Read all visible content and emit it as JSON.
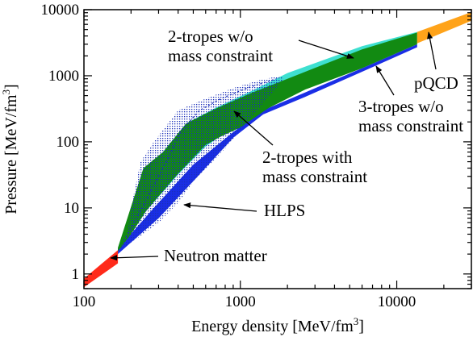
{
  "chart_data": {
    "type": "area",
    "xlabel_main": "Energy density [MeV/fm",
    "xlabel_sup": "3",
    "xlabel_end": "]",
    "ylabel_main": "Pressure  [MeV/fm",
    "ylabel_sup": "3",
    "ylabel_end": "]",
    "xscale": "log",
    "yscale": "log",
    "xlim": [
      100,
      30000
    ],
    "ylim": [
      0.6,
      10000
    ],
    "grid": false,
    "x_ticks": [
      {
        "value": 100,
        "label": "100"
      },
      {
        "value": 1000,
        "label": "1000"
      },
      {
        "value": 10000,
        "label": "10000"
      }
    ],
    "y_ticks": [
      {
        "value": 1,
        "label": "1"
      },
      {
        "value": 10,
        "label": "10"
      },
      {
        "value": 100,
        "label": "100"
      },
      {
        "value": 1000,
        "label": "1000"
      },
      {
        "value": 10000,
        "label": "10000"
      }
    ],
    "colors": {
      "neutron": "#ff2a1a",
      "pqcd": "#ffa31a",
      "two_tropes_without": "#3ee0d0",
      "three_tropes": "#1a2ee6",
      "two_tropes_with": "#128a12",
      "hlps": "#1a2eb8"
    },
    "bands": [
      {
        "id": "neutron-matter",
        "color_key": "neutron",
        "points": [
          [
            100,
            0.63
          ],
          [
            100,
            0.85
          ],
          [
            165,
            2.3
          ],
          [
            165,
            1.45
          ]
        ]
      },
      {
        "id": "pqcd",
        "color_key": "pqcd",
        "points": [
          [
            13500,
            3100
          ],
          [
            13500,
            4600
          ],
          [
            30000,
            9200
          ],
          [
            30000,
            6800
          ]
        ]
      },
      {
        "id": "two-tropes-without",
        "color_key": "two_tropes_without",
        "points": [
          [
            165,
            2.2
          ],
          [
            165,
            2.5
          ],
          [
            240,
            38
          ],
          [
            320,
            70
          ],
          [
            450,
            190
          ],
          [
            700,
            330
          ],
          [
            1200,
            600
          ],
          [
            2000,
            1100
          ],
          [
            6000,
            2800
          ],
          [
            13500,
            4600
          ],
          [
            13500,
            3200
          ],
          [
            8000,
            2200
          ],
          [
            3000,
            1100
          ],
          [
            1500,
            350
          ],
          [
            1000,
            200
          ],
          [
            600,
            85
          ],
          [
            400,
            32
          ],
          [
            250,
            9
          ],
          [
            200,
            4
          ]
        ]
      },
      {
        "id": "three-tropes",
        "color_key": "three_tropes",
        "points": [
          [
            165,
            2.0
          ],
          [
            165,
            2.4
          ],
          [
            280,
            10
          ],
          [
            500,
            45
          ],
          [
            900,
            140
          ],
          [
            1400,
            300
          ],
          [
            2600,
            560
          ],
          [
            6000,
            1300
          ],
          [
            13500,
            3000
          ],
          [
            13500,
            2700
          ],
          [
            6000,
            1150
          ],
          [
            2600,
            480
          ],
          [
            1400,
            260
          ],
          [
            900,
            115
          ],
          [
            520,
            28
          ],
          [
            300,
            7
          ],
          [
            200,
            3
          ]
        ]
      },
      {
        "id": "two-tropes-with",
        "color_key": "two_tropes_with",
        "points": [
          [
            165,
            2.2
          ],
          [
            165,
            2.5
          ],
          [
            240,
            40
          ],
          [
            320,
            70
          ],
          [
            450,
            190
          ],
          [
            700,
            320
          ],
          [
            1200,
            560
          ],
          [
            2000,
            900
          ],
          [
            6000,
            2500
          ],
          [
            13500,
            4500
          ],
          [
            13500,
            3000
          ],
          [
            6000,
            1300
          ],
          [
            2600,
            620
          ],
          [
            1500,
            320
          ],
          [
            1000,
            165
          ],
          [
            750,
            120
          ],
          [
            600,
            90
          ],
          [
            400,
            33
          ],
          [
            250,
            9
          ],
          [
            200,
            4
          ]
        ]
      }
    ],
    "hlps_region": [
      [
        165,
        2.2
      ],
      [
        190,
        4
      ],
      [
        200,
        10
      ],
      [
        230,
        50
      ],
      [
        280,
        100
      ],
      [
        400,
        300
      ],
      [
        600,
        450
      ],
      [
        900,
        650
      ],
      [
        1300,
        850
      ],
      [
        1800,
        1000
      ],
      [
        1900,
        900
      ],
      [
        1600,
        560
      ],
      [
        1200,
        250
      ],
      [
        800,
        80
      ],
      [
        500,
        25
      ],
      [
        400,
        12
      ],
      [
        300,
        6
      ],
      [
        220,
        3.5
      ]
    ],
    "hlps_line": [
      [
        180,
        3.2
      ],
      [
        230,
        9
      ],
      [
        300,
        30
      ],
      [
        350,
        60
      ],
      [
        420,
        150
      ],
      [
        550,
        300
      ],
      [
        750,
        450
      ],
      [
        1100,
        650
      ],
      [
        1700,
        900
      ]
    ],
    "annotations": [
      {
        "id": "annot-two-tropes-without-l1",
        "text": "2-tropes w/o"
      },
      {
        "id": "annot-two-tropes-without-l2",
        "text": "mass constraint"
      },
      {
        "id": "annot-three-tropes-l1",
        "text": "3-tropes w/o"
      },
      {
        "id": "annot-three-tropes-l2",
        "text": "mass constraint"
      },
      {
        "id": "annot-two-tropes-with-l1",
        "text": "2-tropes with"
      },
      {
        "id": "annot-two-tropes-with-l2",
        "text": "mass constraint"
      },
      {
        "id": "annot-hlps",
        "text": "HLPS"
      },
      {
        "id": "annot-neutron-matter",
        "text": "Neutron matter"
      },
      {
        "id": "annot-pqcd",
        "text": "pQCD"
      }
    ]
  }
}
